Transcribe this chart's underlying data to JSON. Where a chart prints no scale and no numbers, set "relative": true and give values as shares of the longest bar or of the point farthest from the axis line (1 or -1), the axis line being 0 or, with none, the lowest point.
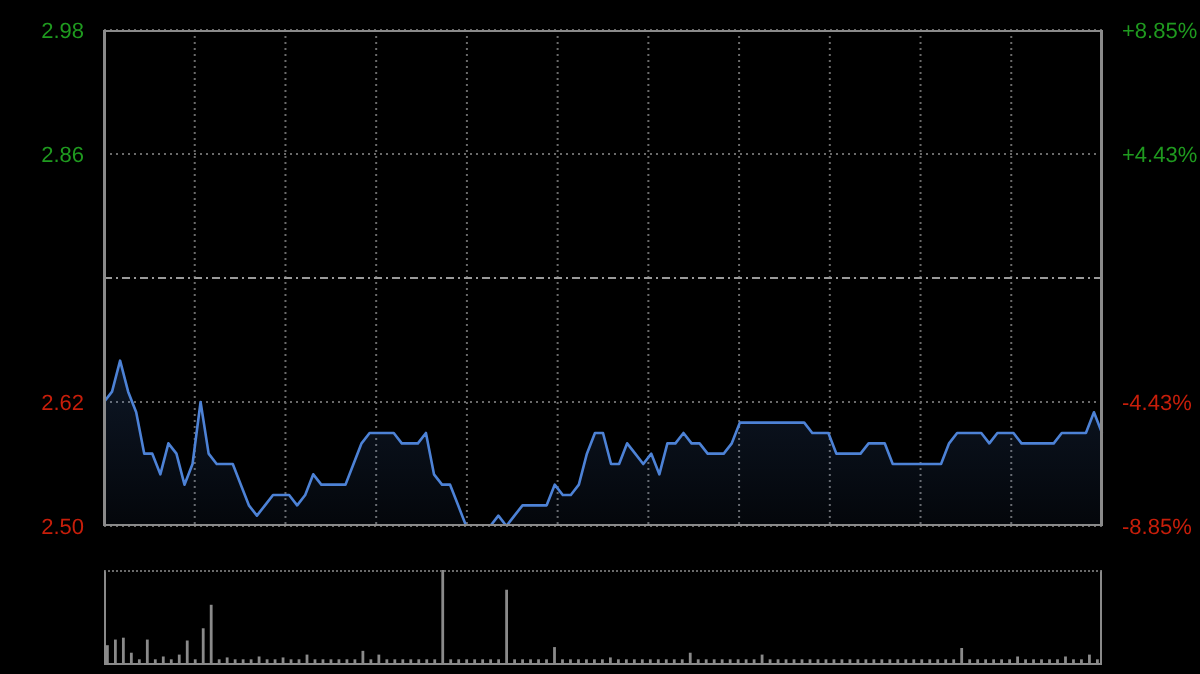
{
  "chart_data": [
    {
      "type": "area",
      "categories": [
        null,
        null,
        null,
        null,
        null,
        null,
        null,
        null,
        null,
        null,
        null,
        null,
        null,
        null,
        null,
        null,
        null,
        null,
        null,
        null,
        null,
        null,
        null,
        null,
        null,
        null,
        null,
        null,
        null,
        null,
        null,
        null,
        null,
        null,
        null,
        null,
        null,
        null,
        null,
        null,
        null,
        null,
        null,
        null,
        null,
        null,
        null,
        null,
        null,
        null,
        null,
        null,
        null,
        null,
        null,
        null,
        null,
        null,
        null,
        null,
        null,
        null,
        null,
        null,
        null,
        null,
        null,
        null,
        null,
        null,
        null,
        null,
        null,
        null,
        null,
        null,
        null,
        null,
        null,
        null,
        null,
        null,
        null,
        null,
        null,
        null,
        null,
        null,
        null,
        null,
        null,
        null,
        null,
        null,
        null,
        null,
        null,
        null,
        null,
        null,
        null,
        null,
        null,
        null,
        null,
        null,
        null,
        null,
        null,
        null,
        null,
        null,
        null,
        null,
        null,
        null,
        null,
        null,
        null,
        null,
        null,
        null,
        null,
        null,
        null
      ],
      "series": [
        {
          "color": "#4d82d6",
          "values": [
            2.62,
            2.63,
            2.66,
            2.63,
            2.61,
            2.57,
            2.57,
            2.55,
            2.58,
            2.57,
            2.54,
            2.56,
            2.62,
            2.57,
            2.56,
            2.56,
            2.56,
            2.54,
            2.52,
            2.51,
            2.52,
            2.53,
            2.53,
            2.53,
            2.52,
            2.53,
            2.55,
            2.54,
            2.54,
            2.54,
            2.54,
            2.56,
            2.58,
            2.59,
            2.59,
            2.59,
            2.59,
            2.58,
            2.58,
            2.58,
            2.59,
            2.55,
            2.54,
            2.54,
            2.52,
            2.5,
            2.5,
            2.5,
            2.5,
            2.51,
            2.5,
            2.51,
            2.52,
            2.52,
            2.52,
            2.52,
            2.54,
            2.53,
            2.53,
            2.54,
            2.57,
            2.59,
            2.59,
            2.56,
            2.56,
            2.58,
            2.57,
            2.56,
            2.57,
            2.55,
            2.58,
            2.58,
            2.59,
            2.58,
            2.58,
            2.57,
            2.57,
            2.57,
            2.58,
            2.6,
            2.6,
            2.6,
            2.6,
            2.6,
            2.6,
            2.6,
            2.6,
            2.6,
            2.59,
            2.59,
            2.59,
            2.57,
            2.57,
            2.57,
            2.57,
            2.58,
            2.58,
            2.58,
            2.56,
            2.56,
            2.56,
            2.56,
            2.56,
            2.56,
            2.56,
            2.58,
            2.59,
            2.59,
            2.59,
            2.59,
            2.58,
            2.59,
            2.59,
            2.59,
            2.58,
            2.58,
            2.58,
            2.58,
            2.58,
            2.59,
            2.59,
            2.59,
            2.59,
            2.61,
            2.59
          ]
        }
      ],
      "ylim": [
        2.5,
        2.98
      ],
      "yticks": [
        {
          "value": 2.5,
          "label": "2.50"
        },
        2.62,
        {
          "value": 2.74,
          "label": null
        },
        2.86,
        2.98
      ],
      "y2lim": [
        -8.85,
        8.85
      ],
      "y2ticks": [
        {
          "value": -8.85,
          "label": "-8.85%"
        },
        {
          "value": -4.43,
          "label": "-4.43%"
        },
        {
          "value": 0,
          "label": null
        },
        {
          "value": 4.43,
          "label": "+4.43%"
        },
        {
          "value": 8.85,
          "label": "+8.85%"
        }
      ],
      "ref_lines": [
        {
          "axis": "y",
          "value": 2.74,
          "line_style": "dashed",
          "color": "#9a9a9a"
        }
      ],
      "grid": true
    },
    {
      "type": "bar",
      "relative": true,
      "color": "#8a8a8a",
      "categories": [
        null,
        null,
        null,
        null,
        null,
        null,
        null,
        null,
        null,
        null,
        null,
        null,
        null,
        null,
        null,
        null,
        null,
        null,
        null,
        null,
        null,
        null,
        null,
        null,
        null,
        null,
        null,
        null,
        null,
        null,
        null,
        null,
        null,
        null,
        null,
        null,
        null,
        null,
        null,
        null,
        null,
        null,
        null,
        null,
        null,
        null,
        null,
        null,
        null,
        null,
        null,
        null,
        null,
        null,
        null,
        null,
        null,
        null,
        null,
        null,
        null,
        null,
        null,
        null,
        null,
        null,
        null,
        null,
        null,
        null,
        null,
        null,
        null,
        null,
        null,
        null,
        null,
        null,
        null,
        null,
        null,
        null,
        null,
        null,
        null,
        null,
        null,
        null,
        null,
        null,
        null,
        null,
        null,
        null,
        null,
        null,
        null,
        null,
        null,
        null,
        null,
        null,
        null,
        null,
        null,
        null,
        null,
        null,
        null,
        null,
        null,
        null,
        null,
        null,
        null,
        null,
        null,
        null,
        null,
        null,
        null,
        null,
        null,
        null,
        null
      ],
      "values": [
        0.2,
        0.26,
        0.28,
        0.12,
        0.05,
        0.26,
        0.05,
        0.08,
        0.05,
        0.1,
        0.25,
        0.05,
        0.38,
        0.63,
        0.05,
        0.07,
        0.05,
        0.05,
        0.05,
        0.08,
        0.05,
        0.05,
        0.07,
        0.05,
        0.05,
        0.1,
        0.05,
        0.05,
        0.05,
        0.05,
        0.05,
        0.05,
        0.14,
        0.05,
        0.1,
        0.05,
        0.05,
        0.05,
        0.05,
        0.05,
        0.05,
        0.05,
        1,
        0.05,
        0.05,
        0.05,
        0.05,
        0.05,
        0.05,
        0.05,
        0.79,
        0.05,
        0.05,
        0.05,
        0.05,
        0.05,
        0.18,
        0.05,
        0.05,
        0.05,
        0.05,
        0.05,
        0.05,
        0.07,
        0.05,
        0.05,
        0.05,
        0.05,
        0.05,
        0.05,
        0.05,
        0.05,
        0.05,
        0.12,
        0.05,
        0.05,
        0.05,
        0.05,
        0.05,
        0.05,
        0.05,
        0.05,
        0.1,
        0.05,
        0.05,
        0.05,
        0.05,
        0.05,
        0.05,
        0.05,
        0.05,
        0.05,
        0.05,
        0.05,
        0.05,
        0.05,
        0.05,
        0.05,
        0.05,
        0.05,
        0.05,
        0.05,
        0.05,
        0.05,
        0.05,
        0.05,
        0.05,
        0.17,
        0.05,
        0.05,
        0.05,
        0.05,
        0.05,
        0.05,
        0.08,
        0.05,
        0.05,
        0.05,
        0.05,
        0.05,
        0.08,
        0.05,
        0.05,
        0.1,
        0.05
      ]
    }
  ]
}
